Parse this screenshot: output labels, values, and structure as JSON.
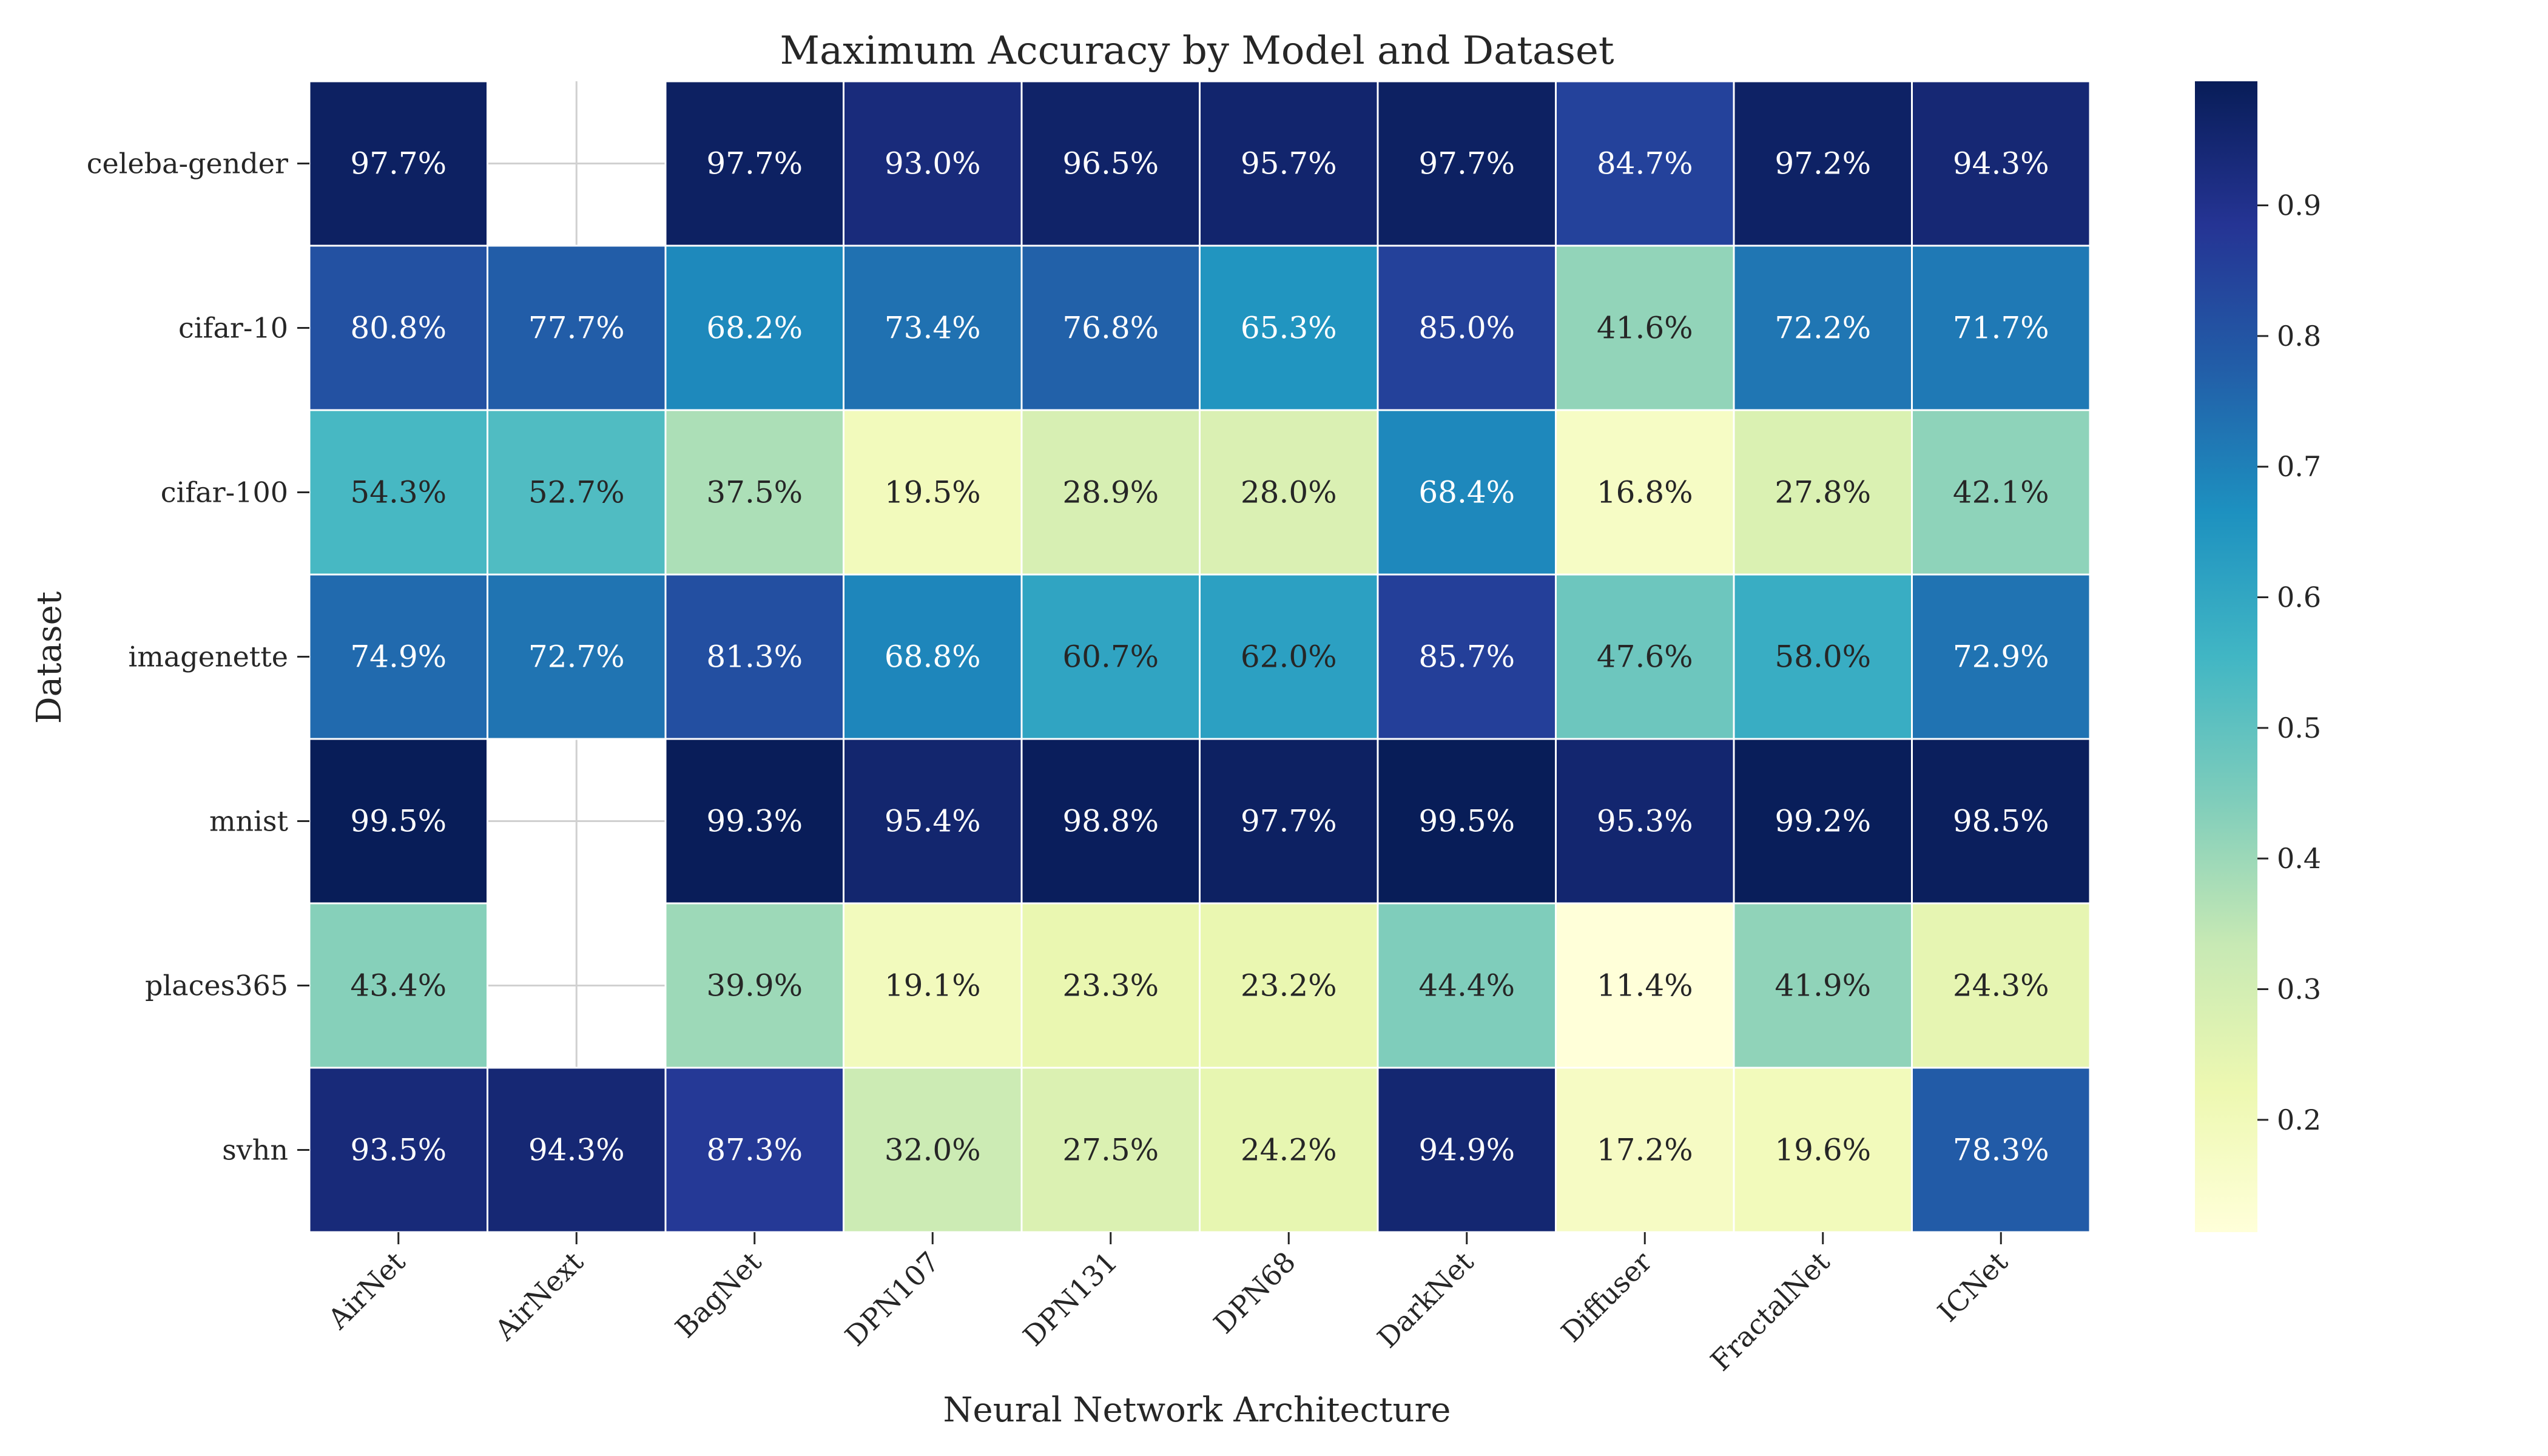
{
  "chart_data": {
    "type": "heatmap",
    "title": "Maximum Accuracy by Model and Dataset",
    "xlabel": "Neural Network Architecture",
    "ylabel": "Dataset",
    "x_categories": [
      "AirNet",
      "AirNext",
      "BagNet",
      "DPN107",
      "DPN131",
      "DPN68",
      "DarkNet",
      "Diffuser",
      "FractalNet",
      "ICNet"
    ],
    "y_categories": [
      "celeba-gender",
      "cifar-10",
      "cifar-100",
      "imagenette",
      "mnist",
      "places365",
      "svhn"
    ],
    "values": [
      [
        0.977,
        null,
        0.977,
        0.93,
        0.965,
        0.957,
        0.977,
        0.847,
        0.972,
        0.943
      ],
      [
        0.808,
        0.777,
        0.682,
        0.734,
        0.768,
        0.653,
        0.85,
        0.416,
        0.722,
        0.717
      ],
      [
        0.543,
        0.527,
        0.375,
        0.195,
        0.289,
        0.28,
        0.684,
        0.168,
        0.278,
        0.421
      ],
      [
        0.749,
        0.727,
        0.813,
        0.688,
        0.607,
        0.62,
        0.857,
        0.476,
        0.58,
        0.729
      ],
      [
        0.995,
        null,
        0.993,
        0.954,
        0.988,
        0.977,
        0.995,
        0.953,
        0.992,
        0.985
      ],
      [
        0.434,
        null,
        0.399,
        0.191,
        0.233,
        0.232,
        0.444,
        0.114,
        0.419,
        0.243
      ],
      [
        0.935,
        0.943,
        0.873,
        0.32,
        0.275,
        0.242,
        0.949,
        0.172,
        0.196,
        0.783
      ]
    ],
    "value_format": "percent_1dp",
    "colormap": "YlGnBu",
    "color_range": [
      0.114,
      0.995
    ],
    "colorbar": {
      "ticks": [
        0.2,
        0.3,
        0.4,
        0.5,
        0.6,
        0.7,
        0.8,
        0.9
      ],
      "tick_labels": [
        "0.2",
        "0.3",
        "0.4",
        "0.5",
        "0.6",
        "0.7",
        "0.8",
        "0.9"
      ]
    },
    "missing_cell_color": "#ffffff",
    "grid": true
  }
}
